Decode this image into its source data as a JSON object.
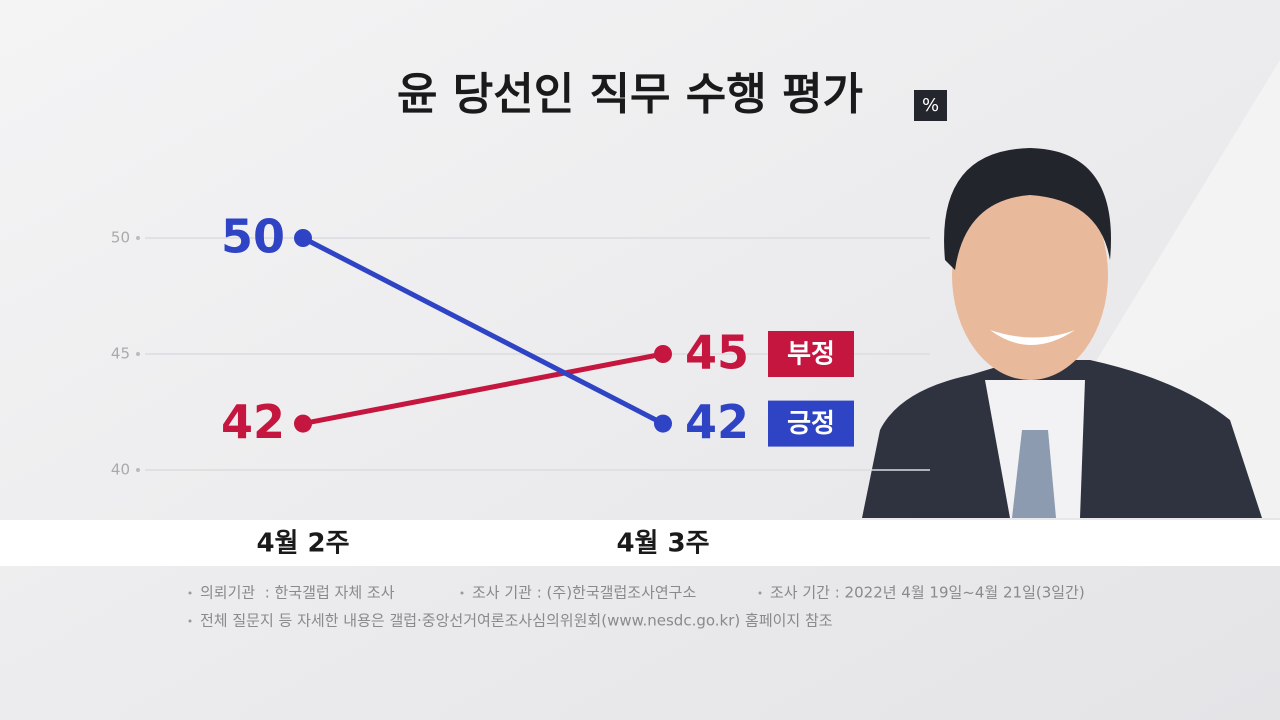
{
  "chart_data": {
    "type": "line",
    "title": "윤 당선인 직무 수행 평가",
    "unit": "%",
    "categories": [
      "4월 2주",
      "4월 3주"
    ],
    "series": [
      {
        "name": "부정",
        "color": "#c4163f",
        "values": [
          42,
          45
        ]
      },
      {
        "name": "긍정",
        "color": "#2f44c4",
        "values": [
          50,
          42
        ]
      }
    ],
    "ylim": [
      40,
      50
    ],
    "yticks": [
      40,
      45,
      50
    ],
    "grid": true,
    "notes": [
      "의뢰기관  : 한국갤럽 자체 조사",
      "조사 기관 : (주)한국갤럽조사연구소",
      "조사 기간 : 2022년 4월 19일~4월 21일(3일간)",
      "전체 질문지 등 자세한 내용은 갤럽·중앙선거여론조사심의위원회(www.nesdc.go.kr) 홈페이지 참조"
    ]
  }
}
